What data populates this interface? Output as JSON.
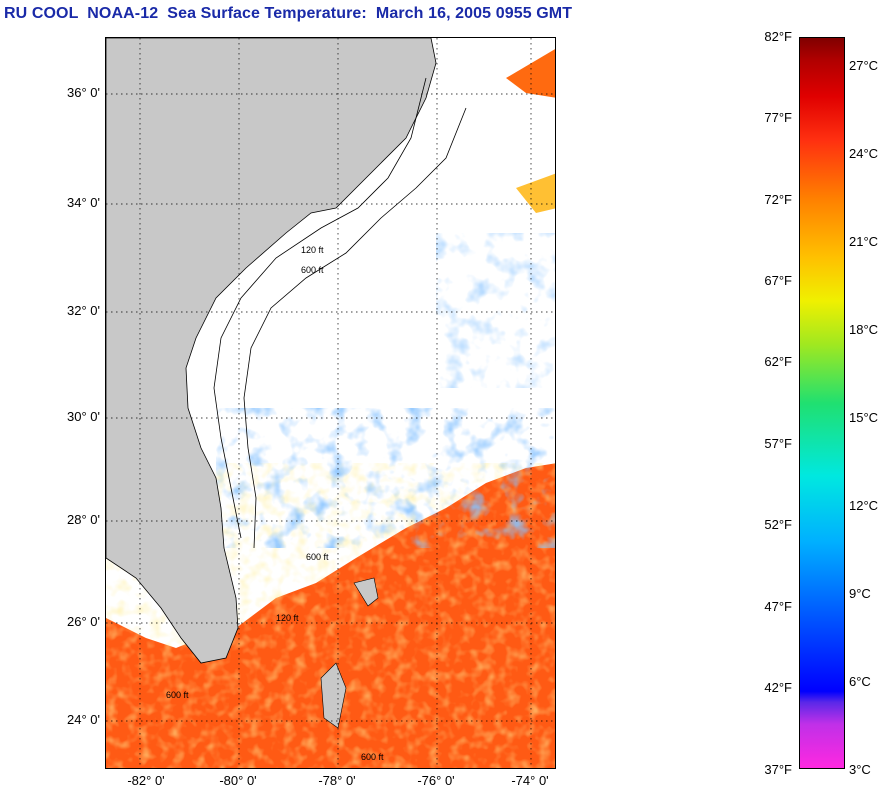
{
  "title": "RU COOL  NOAA-12  Sea Surface Temperature:  March 16, 2005 0955 GMT",
  "map": {
    "lat_ticks": [
      "36° 0'",
      "34° 0'",
      "32° 0'",
      "30° 0'",
      "28° 0'",
      "26° 0'",
      "24° 0'"
    ],
    "lon_ticks": [
      "-82° 0'",
      "-80° 0'",
      "-78° 0'",
      "-76° 0'",
      "-74° 0'"
    ],
    "contour_labels": [
      "120 ft",
      "600 ft",
      "600 ft",
      "120 ft",
      "600 ft",
      "600 ft"
    ],
    "colors": {
      "land": "#c8c8c8",
      "cloud": "#ffffff",
      "warm": "#ff5a14",
      "cool": "#40a0ff"
    }
  },
  "colorbar": {
    "fahrenheit": [
      "82°F",
      "77°F",
      "72°F",
      "67°F",
      "62°F",
      "57°F",
      "52°F",
      "47°F",
      "42°F",
      "37°F"
    ],
    "celsius": [
      "27°C",
      "24°C",
      "21°C",
      "18°C",
      "15°C",
      "12°C",
      "9°C",
      "6°C",
      "3°C"
    ]
  }
}
